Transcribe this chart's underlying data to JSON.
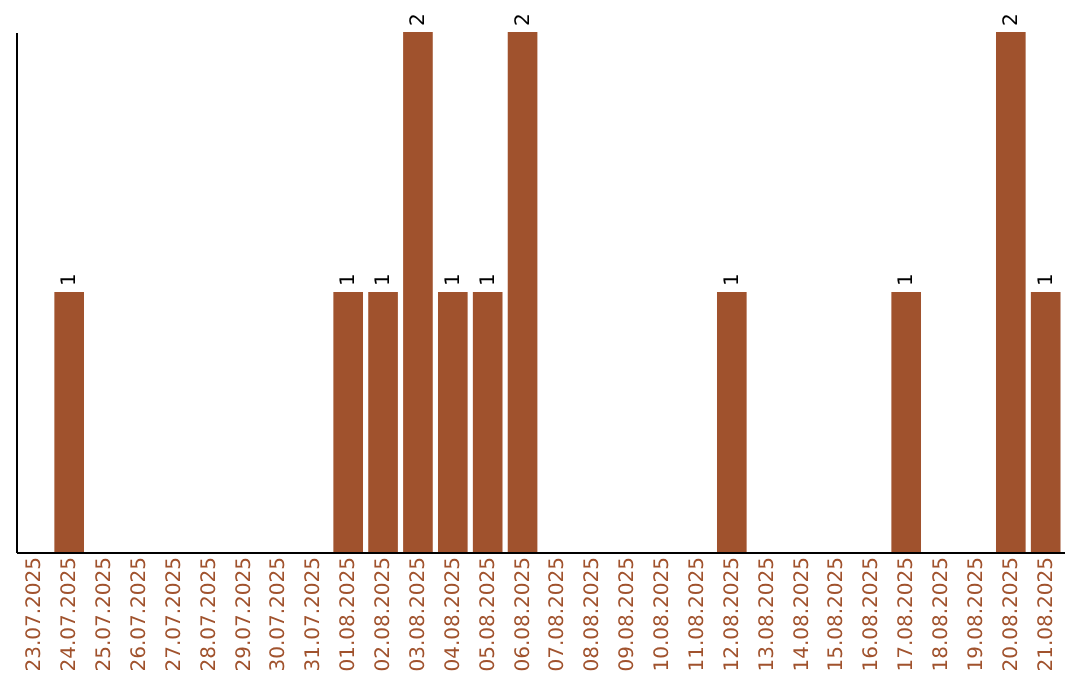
{
  "chart_data": {
    "type": "bar",
    "categories": [
      "23.07.2025",
      "24.07.2025",
      "25.07.2025",
      "26.07.2025",
      "27.07.2025",
      "28.07.2025",
      "29.07.2025",
      "30.07.2025",
      "31.07.2025",
      "01.08.2025",
      "02.08.2025",
      "03.08.2025",
      "04.08.2025",
      "05.08.2025",
      "06.08.2025",
      "07.08.2025",
      "08.08.2025",
      "09.08.2025",
      "10.08.2025",
      "11.08.2025",
      "12.08.2025",
      "13.08.2025",
      "14.08.2025",
      "15.08.2025",
      "16.08.2025",
      "17.08.2025",
      "18.08.2025",
      "19.08.2025",
      "20.08.2025",
      "21.08.2025"
    ],
    "values": [
      0,
      1,
      0,
      0,
      0,
      0,
      0,
      0,
      0,
      1,
      1,
      2,
      1,
      1,
      2,
      0,
      0,
      0,
      0,
      0,
      1,
      0,
      0,
      0,
      0,
      1,
      0,
      0,
      2,
      1
    ],
    "value_labels": [
      null,
      "1",
      null,
      null,
      null,
      null,
      null,
      null,
      null,
      "1",
      "1",
      "2",
      "1",
      "1",
      "2",
      null,
      null,
      null,
      null,
      null,
      "1",
      null,
      null,
      null,
      null,
      "1",
      null,
      null,
      "2",
      "1"
    ],
    "color": "#a0522d",
    "ylim": [
      0,
      2
    ],
    "grid": false
  }
}
